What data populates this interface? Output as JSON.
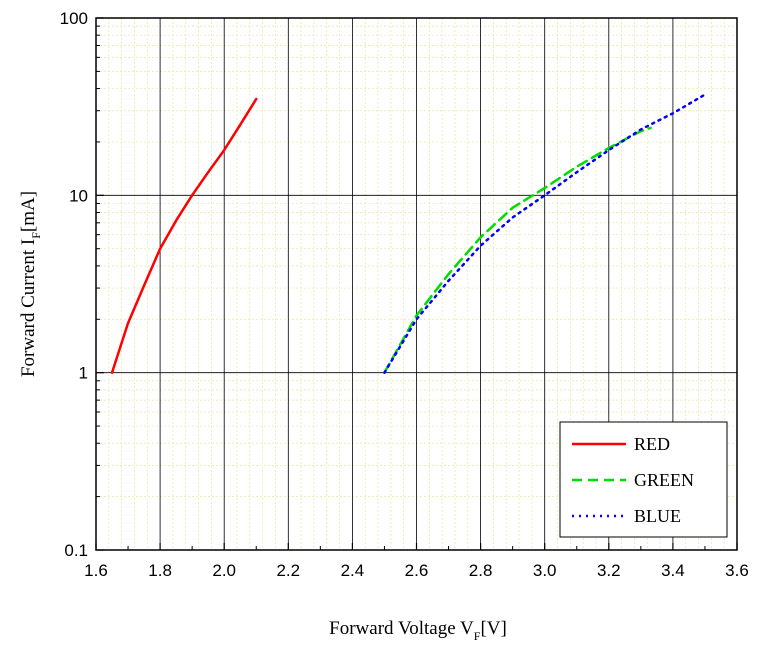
{
  "chart_data": {
    "type": "line",
    "xlabel": {
      "main": "Forward Voltage V",
      "sub": "F",
      "unit": "[V]"
    },
    "ylabel": {
      "main": "Forward Current I",
      "sub": "F",
      "unit": "[mA]"
    },
    "xlim": [
      1.6,
      3.6
    ],
    "ylim": [
      0.1,
      100
    ],
    "yscale": "log",
    "x_ticks": [
      "1.6",
      "1.8",
      "2.0",
      "2.2",
      "2.4",
      "2.6",
      "2.8",
      "3.0",
      "3.2",
      "3.4",
      "3.6"
    ],
    "y_ticks": [
      "0.1",
      "1",
      "10",
      "100"
    ],
    "grid": true,
    "legend_position": "bottom-right",
    "series": [
      {
        "name": "RED",
        "color": "#ff0000",
        "dash": "solid",
        "x": [
          1.65,
          1.7,
          1.75,
          1.8,
          1.85,
          1.9,
          1.95,
          2.0,
          2.05,
          2.1
        ],
        "y": [
          1.0,
          1.9,
          3.1,
          5.0,
          7.2,
          10.0,
          13.5,
          18.0,
          25.0,
          35.0
        ]
      },
      {
        "name": "GREEN",
        "color": "#00dd00",
        "dash": "dashed",
        "x": [
          2.5,
          2.6,
          2.7,
          2.8,
          2.9,
          3.0,
          3.1,
          3.2,
          3.3,
          3.33
        ],
        "y": [
          1.0,
          2.1,
          3.6,
          5.8,
          8.5,
          11.0,
          14.5,
          18.5,
          23.0,
          24.0
        ]
      },
      {
        "name": "BLUE",
        "color": "#0000ff",
        "dash": "dotted",
        "x": [
          2.5,
          2.6,
          2.7,
          2.8,
          2.9,
          3.0,
          3.1,
          3.2,
          3.3,
          3.4,
          3.5
        ],
        "y": [
          1.0,
          2.0,
          3.3,
          5.2,
          7.5,
          10.0,
          13.5,
          18.0,
          23.5,
          29.0,
          37.0
        ]
      }
    ]
  }
}
